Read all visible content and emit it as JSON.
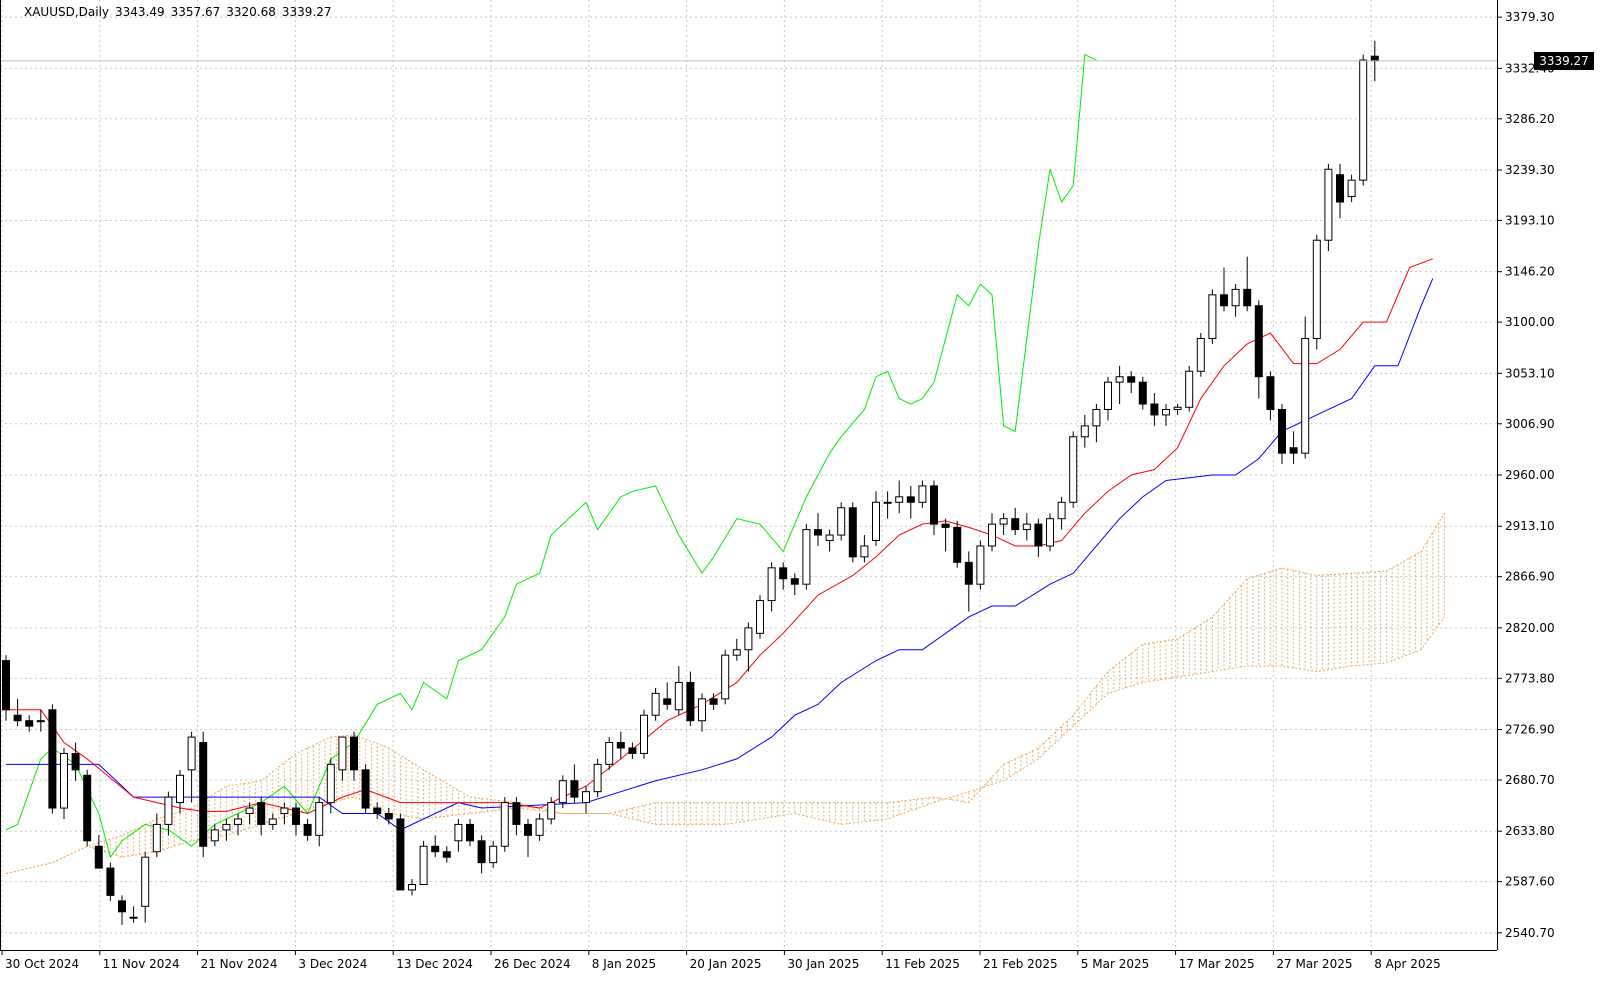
{
  "chart_data": {
    "type": "candlestick",
    "symbol": "XAUUSD",
    "timeframe": "Daily",
    "ohlc": {
      "open": "3343.49",
      "high": "3357.67",
      "low": "3320.68",
      "close": "3339.27"
    },
    "last_price": "3339.27",
    "y_tick_labels": [
      "3379.30",
      "3332.40",
      "3286.20",
      "3239.30",
      "3193.10",
      "3146.20",
      "3100.00",
      "3053.10",
      "3006.90",
      "2960.00",
      "2913.10",
      "2866.90",
      "2820.00",
      "2773.80",
      "2726.90",
      "2680.70",
      "2633.80",
      "2587.60",
      "2540.70"
    ],
    "ylim": [
      2525,
      3395
    ],
    "x_tick_labels": [
      "30 Oct 2024",
      "11 Nov 2024",
      "21 Nov 2024",
      "3 Dec 2024",
      "13 Dec 2024",
      "26 Dec 2024",
      "8 Jan 2025",
      "20 Jan 2025",
      "30 Jan 2025",
      "11 Feb 2025",
      "21 Feb 2025",
      "5 Mar 2025",
      "17 Mar 2025",
      "27 Mar 2025",
      "8 Apr 2025"
    ],
    "grid": true,
    "colors": {
      "background": "#ffffff",
      "grid": "#c8c8c8",
      "candle_up": "#ffffff",
      "candle_down": "#000000",
      "tenkan": "#ff0000",
      "kijun": "#0000ff",
      "chikou": "#00ee00",
      "cloud": "#f4a460"
    },
    "candles": [
      [
        2790,
        2795,
        2735,
        2745
      ],
      [
        2740,
        2755,
        2730,
        2735
      ],
      [
        2735,
        2740,
        2725,
        2730
      ],
      [
        2735,
        2745,
        2725,
        2735
      ],
      [
        2745,
        2750,
        2650,
        2655
      ],
      [
        2655,
        2710,
        2645,
        2705
      ],
      [
        2705,
        2715,
        2680,
        2690
      ],
      [
        2685,
        2690,
        2620,
        2625
      ],
      [
        2620,
        2630,
        2600,
        2600
      ],
      [
        2600,
        2605,
        2570,
        2575
      ],
      [
        2570,
        2575,
        2548,
        2560
      ],
      [
        2555,
        2565,
        2550,
        2555
      ],
      [
        2565,
        2615,
        2550,
        2610
      ],
      [
        2615,
        2650,
        2610,
        2640
      ],
      [
        2640,
        2670,
        2630,
        2665
      ],
      [
        2660,
        2690,
        2650,
        2685
      ],
      [
        2690,
        2725,
        2660,
        2720
      ],
      [
        2715,
        2725,
        2610,
        2620
      ],
      [
        2625,
        2640,
        2620,
        2635
      ],
      [
        2635,
        2645,
        2625,
        2640
      ],
      [
        2640,
        2650,
        2630,
        2645
      ],
      [
        2650,
        2660,
        2640,
        2655
      ],
      [
        2660,
        2665,
        2630,
        2640
      ],
      [
        2640,
        2650,
        2635,
        2645
      ],
      [
        2650,
        2660,
        2640,
        2655
      ],
      [
        2655,
        2660,
        2630,
        2640
      ],
      [
        2640,
        2645,
        2625,
        2630
      ],
      [
        2630,
        2665,
        2620,
        2660
      ],
      [
        2660,
        2700,
        2650,
        2695
      ],
      [
        2690,
        2720,
        2680,
        2720
      ],
      [
        2720,
        2725,
        2680,
        2690
      ],
      [
        2690,
        2695,
        2650,
        2655
      ],
      [
        2655,
        2660,
        2645,
        2650
      ],
      [
        2650,
        2655,
        2640,
        2645
      ],
      [
        2645,
        2650,
        2580,
        2580
      ],
      [
        2580,
        2590,
        2575,
        2585
      ],
      [
        2585,
        2625,
        2585,
        2620
      ],
      [
        2620,
        2630,
        2610,
        2615
      ],
      [
        2615,
        2620,
        2605,
        2610
      ],
      [
        2625,
        2645,
        2615,
        2640
      ],
      [
        2640,
        2645,
        2620,
        2625
      ],
      [
        2625,
        2630,
        2595,
        2605
      ],
      [
        2605,
        2625,
        2600,
        2620
      ],
      [
        2620,
        2665,
        2615,
        2660
      ],
      [
        2660,
        2665,
        2630,
        2640
      ],
      [
        2640,
        2645,
        2610,
        2630
      ],
      [
        2630,
        2650,
        2625,
        2645
      ],
      [
        2645,
        2665,
        2640,
        2660
      ],
      [
        2660,
        2685,
        2655,
        2680
      ],
      [
        2680,
        2695,
        2660,
        2665
      ],
      [
        2660,
        2675,
        2650,
        2670
      ],
      [
        2670,
        2700,
        2665,
        2695
      ],
      [
        2695,
        2720,
        2690,
        2715
      ],
      [
        2715,
        2725,
        2700,
        2710
      ],
      [
        2710,
        2715,
        2700,
        2705
      ],
      [
        2705,
        2745,
        2700,
        2740
      ],
      [
        2740,
        2765,
        2735,
        2760
      ],
      [
        2755,
        2770,
        2745,
        2750
      ],
      [
        2745,
        2785,
        2740,
        2770
      ],
      [
        2770,
        2780,
        2730,
        2735
      ],
      [
        2735,
        2760,
        2725,
        2755
      ],
      [
        2755,
        2760,
        2745,
        2750
      ],
      [
        2755,
        2800,
        2750,
        2795
      ],
      [
        2795,
        2810,
        2790,
        2800
      ],
      [
        2800,
        2825,
        2780,
        2820
      ],
      [
        2815,
        2850,
        2810,
        2845
      ],
      [
        2845,
        2880,
        2835,
        2875
      ],
      [
        2875,
        2880,
        2855,
        2865
      ],
      [
        2865,
        2870,
        2850,
        2860
      ],
      [
        2860,
        2915,
        2855,
        2910
      ],
      [
        2910,
        2925,
        2895,
        2905
      ],
      [
        2900,
        2910,
        2890,
        2905
      ],
      [
        2905,
        2935,
        2900,
        2930
      ],
      [
        2930,
        2935,
        2880,
        2885
      ],
      [
        2885,
        2905,
        2880,
        2895
      ],
      [
        2900,
        2945,
        2895,
        2935
      ],
      [
        2935,
        2945,
        2920,
        2935
      ],
      [
        2935,
        2955,
        2925,
        2940
      ],
      [
        2940,
        2950,
        2920,
        2935
      ],
      [
        2935,
        2955,
        2930,
        2950
      ],
      [
        2950,
        2955,
        2905,
        2915
      ],
      [
        2915,
        2920,
        2890,
        2912
      ],
      [
        2912,
        2918,
        2875,
        2880
      ],
      [
        2880,
        2890,
        2835,
        2860
      ],
      [
        2860,
        2900,
        2855,
        2895
      ],
      [
        2895,
        2925,
        2890,
        2915
      ],
      [
        2915,
        2925,
        2905,
        2920
      ],
      [
        2920,
        2930,
        2905,
        2910
      ],
      [
        2910,
        2925,
        2900,
        2915
      ],
      [
        2915,
        2920,
        2885,
        2895
      ],
      [
        2895,
        2925,
        2890,
        2920
      ],
      [
        2920,
        2940,
        2910,
        2935
      ],
      [
        2935,
        3000,
        2930,
        2995
      ],
      [
        2995,
        3015,
        2985,
        3005
      ],
      [
        3005,
        3025,
        2990,
        3020
      ],
      [
        3020,
        3050,
        3010,
        3045
      ],
      [
        3045,
        3060,
        3025,
        3050
      ],
      [
        3050,
        3055,
        3035,
        3045
      ],
      [
        3045,
        3050,
        3020,
        3025
      ],
      [
        3025,
        3035,
        3005,
        3015
      ],
      [
        3015,
        3025,
        3005,
        3020
      ],
      [
        3020,
        3025,
        3015,
        3022
      ],
      [
        3022,
        3060,
        3018,
        3055
      ],
      [
        3055,
        3090,
        3050,
        3085
      ],
      [
        3085,
        3130,
        3080,
        3125
      ],
      [
        3125,
        3150,
        3110,
        3115
      ],
      [
        3115,
        3135,
        3105,
        3130
      ],
      [
        3130,
        3160,
        3110,
        3115
      ],
      [
        3115,
        3120,
        3030,
        3050
      ],
      [
        3050,
        3055,
        3010,
        3020
      ],
      [
        3020,
        3025,
        2970,
        2980
      ],
      [
        2985,
        3000,
        2970,
        2980
      ],
      [
        2980,
        3105,
        2975,
        3085
      ],
      [
        3085,
        3180,
        3075,
        3175
      ],
      [
        3175,
        3245,
        3165,
        3240
      ],
      [
        3235,
        3245,
        3195,
        3210
      ],
      [
        3215,
        3235,
        3210,
        3230
      ],
      [
        3230,
        3345,
        3225,
        3340
      ],
      [
        3343.49,
        3357.67,
        3320.68,
        3339.27
      ]
    ],
    "tenkan": [
      [
        0,
        2745
      ],
      [
        3,
        2745
      ],
      [
        5,
        2715
      ],
      [
        7,
        2700
      ],
      [
        11,
        2665
      ],
      [
        15,
        2655
      ],
      [
        17,
        2652
      ],
      [
        19,
        2652
      ],
      [
        22,
        2660
      ],
      [
        26,
        2650
      ],
      [
        29,
        2665
      ],
      [
        31,
        2672
      ],
      [
        34,
        2660
      ],
      [
        39,
        2660
      ],
      [
        43,
        2660
      ],
      [
        46,
        2655
      ],
      [
        48,
        2665
      ],
      [
        50,
        2675
      ],
      [
        53,
        2700
      ],
      [
        57,
        2735
      ],
      [
        60,
        2750
      ],
      [
        63,
        2770
      ],
      [
        65,
        2795
      ],
      [
        67,
        2815
      ],
      [
        70,
        2850
      ],
      [
        73,
        2868
      ],
      [
        75,
        2885
      ],
      [
        77,
        2905
      ],
      [
        79,
        2915
      ],
      [
        81,
        2918
      ],
      [
        83,
        2912
      ],
      [
        85,
        2905
      ],
      [
        87,
        2895
      ],
      [
        89,
        2895
      ],
      [
        91,
        2900
      ],
      [
        93,
        2925
      ],
      [
        95,
        2945
      ],
      [
        97,
        2960
      ],
      [
        99,
        2965
      ],
      [
        101,
        2985
      ],
      [
        103,
        3030
      ],
      [
        105,
        3060
      ],
      [
        107,
        3080
      ],
      [
        109,
        3090
      ],
      [
        111,
        3062
      ],
      [
        113,
        3062
      ],
      [
        115,
        3075
      ],
      [
        117,
        3100
      ],
      [
        119,
        3100
      ],
      [
        121,
        3150
      ],
      [
        123,
        3158
      ]
    ],
    "kijun": [
      [
        0,
        2695
      ],
      [
        8,
        2695
      ],
      [
        11,
        2665
      ],
      [
        27,
        2665
      ],
      [
        29,
        2650
      ],
      [
        32,
        2650
      ],
      [
        34,
        2635
      ],
      [
        39,
        2660
      ],
      [
        41,
        2655
      ],
      [
        50,
        2660
      ],
      [
        56,
        2680
      ],
      [
        60,
        2690
      ],
      [
        63,
        2700
      ],
      [
        66,
        2720
      ],
      [
        68,
        2740
      ],
      [
        70,
        2750
      ],
      [
        72,
        2770
      ],
      [
        75,
        2790
      ],
      [
        77,
        2800
      ],
      [
        79,
        2800
      ],
      [
        81,
        2815
      ],
      [
        83,
        2830
      ],
      [
        85,
        2840
      ],
      [
        87,
        2840
      ],
      [
        90,
        2860
      ],
      [
        92,
        2870
      ],
      [
        94,
        2895
      ],
      [
        96,
        2920
      ],
      [
        98,
        2940
      ],
      [
        100,
        2955
      ],
      [
        104,
        2960
      ],
      [
        106,
        2960
      ],
      [
        108,
        2975
      ],
      [
        110,
        3000
      ],
      [
        112,
        3010
      ],
      [
        114,
        3020
      ],
      [
        116,
        3030
      ],
      [
        118,
        3060
      ],
      [
        120,
        3060
      ],
      [
        122,
        3115
      ],
      [
        123,
        3140
      ]
    ],
    "chikou": [
      [
        0,
        2635
      ],
      [
        1,
        2640
      ],
      [
        3,
        2700
      ],
      [
        4,
        2710
      ],
      [
        6,
        2695
      ],
      [
        8,
        2650
      ],
      [
        9,
        2610
      ],
      [
        10,
        2625
      ],
      [
        12,
        2640
      ],
      [
        14,
        2635
      ],
      [
        16,
        2620
      ],
      [
        18,
        2640
      ],
      [
        20,
        2650
      ],
      [
        22,
        2660
      ],
      [
        24,
        2675
      ],
      [
        26,
        2650
      ],
      [
        28,
        2700
      ],
      [
        30,
        2715
      ],
      [
        32,
        2750
      ],
      [
        34,
        2760
      ],
      [
        35,
        2745
      ],
      [
        36,
        2770
      ],
      [
        38,
        2755
      ],
      [
        39,
        2790
      ],
      [
        41,
        2800
      ],
      [
        43,
        2830
      ],
      [
        44,
        2860
      ],
      [
        46,
        2870
      ],
      [
        47,
        2905
      ],
      [
        48,
        2915
      ],
      [
        50,
        2935
      ],
      [
        51,
        2910
      ],
      [
        53,
        2940
      ],
      [
        54,
        2945
      ],
      [
        56,
        2950
      ],
      [
        58,
        2905
      ],
      [
        60,
        2870
      ],
      [
        61,
        2885
      ],
      [
        63,
        2920
      ],
      [
        65,
        2915
      ],
      [
        67,
        2890
      ],
      [
        69,
        2940
      ],
      [
        71,
        2980
      ],
      [
        72,
        2995
      ],
      [
        74,
        3020
      ],
      [
        75,
        3050
      ],
      [
        76,
        3055
      ],
      [
        77,
        3030
      ],
      [
        78,
        3025
      ],
      [
        79,
        3030
      ],
      [
        80,
        3045
      ],
      [
        81,
        3085
      ],
      [
        82,
        3125
      ],
      [
        83,
        3115
      ],
      [
        84,
        3135
      ],
      [
        85,
        3125
      ],
      [
        86,
        3005
      ],
      [
        87,
        3000
      ],
      [
        89,
        3170
      ],
      [
        90,
        3240
      ],
      [
        91,
        3210
      ],
      [
        92,
        3225
      ],
      [
        93,
        3345
      ],
      [
        94,
        3340
      ]
    ],
    "cloud": [
      [
        0,
        2595,
        2595
      ],
      [
        4,
        2605,
        2605
      ],
      [
        7,
        2620,
        2620
      ],
      [
        10,
        2610,
        2630
      ],
      [
        13,
        2615,
        2645
      ],
      [
        16,
        2625,
        2655
      ],
      [
        19,
        2630,
        2675
      ],
      [
        22,
        2640,
        2680
      ],
      [
        25,
        2650,
        2705
      ],
      [
        28,
        2660,
        2720
      ],
      [
        30,
        2665,
        2722
      ],
      [
        33,
        2650,
        2710
      ],
      [
        36,
        2645,
        2690
      ],
      [
        40,
        2650,
        2665
      ],
      [
        44,
        2655,
        2660
      ],
      [
        48,
        2650,
        2650
      ],
      [
        52,
        2650,
        2650
      ],
      [
        56,
        2660,
        2640
      ],
      [
        62,
        2660,
        2640
      ],
      [
        68,
        2660,
        2650
      ],
      [
        72,
        2660,
        2640
      ],
      [
        76,
        2660,
        2645
      ],
      [
        80,
        2665,
        2660
      ],
      [
        83,
        2660,
        2670
      ],
      [
        86,
        2695,
        2680
      ],
      [
        89,
        2710,
        2700
      ],
      [
        92,
        2740,
        2730
      ],
      [
        95,
        2780,
        2760
      ],
      [
        98,
        2805,
        2770
      ],
      [
        101,
        2810,
        2775
      ],
      [
        104,
        2830,
        2780
      ],
      [
        107,
        2865,
        2785
      ],
      [
        110,
        2875,
        2785
      ],
      [
        113,
        2868,
        2780
      ],
      [
        116,
        2870,
        2785
      ],
      [
        119,
        2872,
        2788
      ],
      [
        122,
        2890,
        2800
      ],
      [
        124,
        2925,
        2830
      ]
    ]
  }
}
